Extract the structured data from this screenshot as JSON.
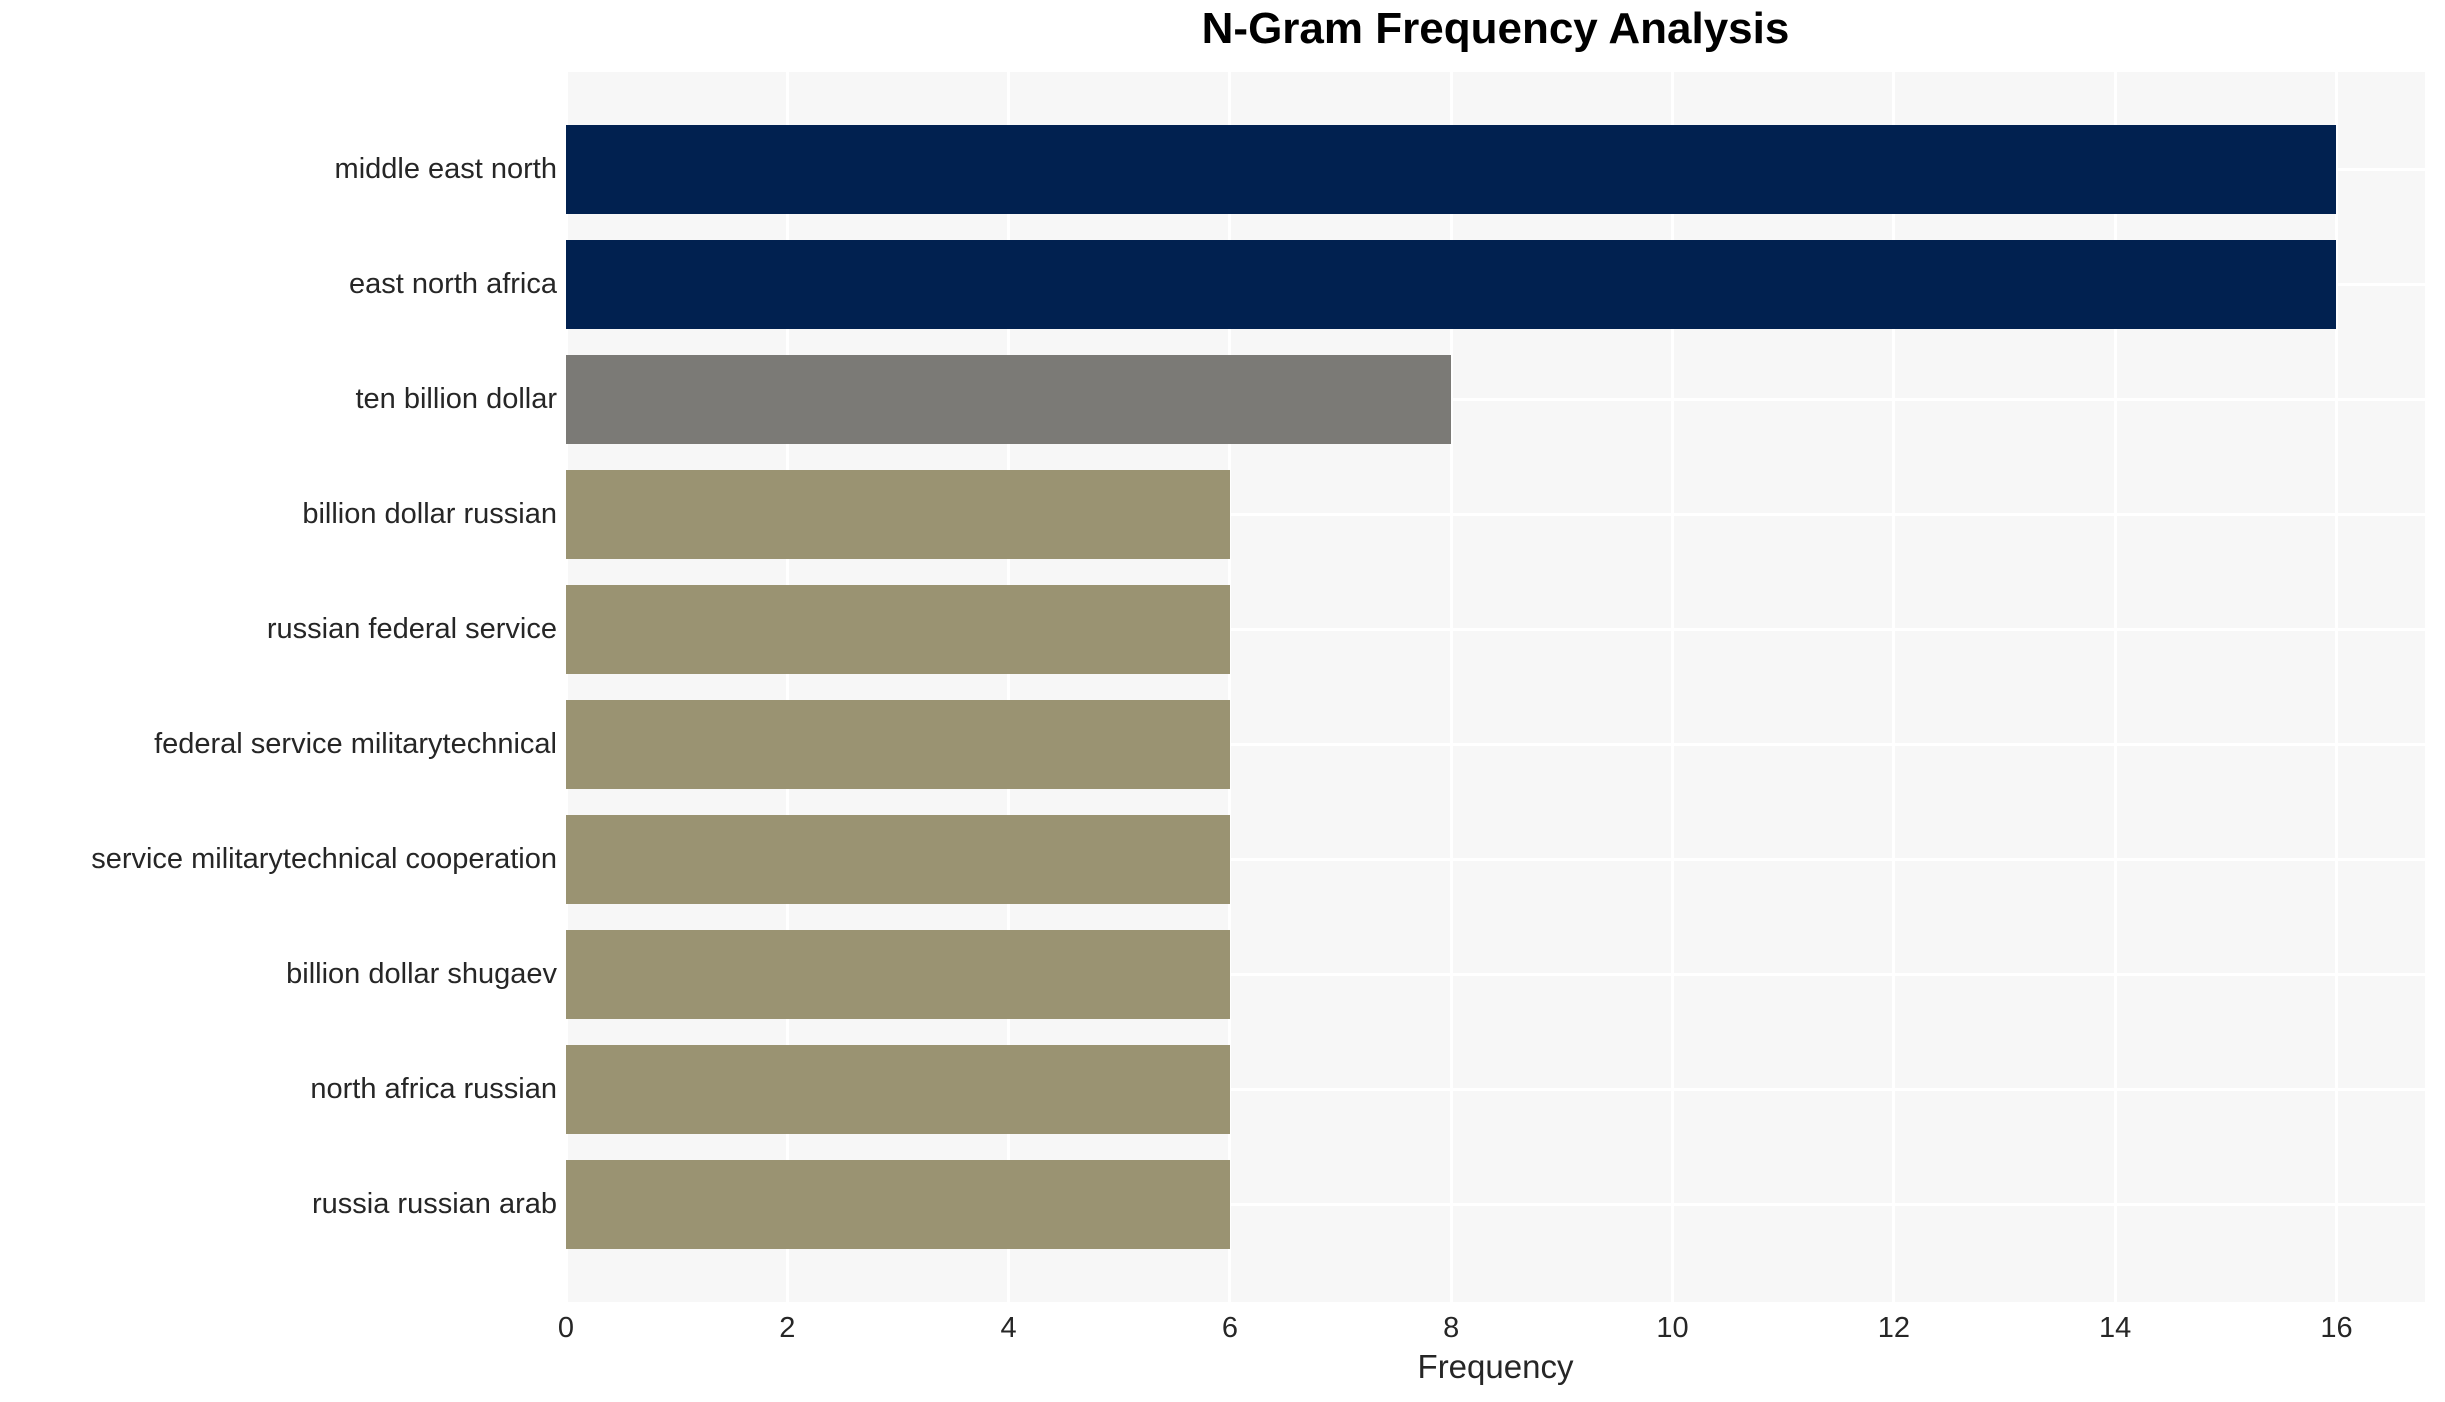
{
  "chart_data": {
    "type": "bar",
    "orientation": "horizontal",
    "title": "N-Gram Frequency Analysis",
    "xlabel": "Frequency",
    "ylabel": "",
    "categories": [
      "middle east north",
      "east north africa",
      "ten billion dollar",
      "billion dollar russian",
      "russian federal service",
      "federal service militarytechnical",
      "service militarytechnical cooperation",
      "billion dollar shugaev",
      "north africa russian",
      "russia russian arab"
    ],
    "values": [
      16,
      16,
      8,
      6,
      6,
      6,
      6,
      6,
      6,
      6
    ],
    "bar_colors": [
      "#012150",
      "#012150",
      "#7b7a76",
      "#9a9372",
      "#9a9372",
      "#9a9372",
      "#9a9372",
      "#9a9372",
      "#9a9372",
      "#9a9372"
    ],
    "xticks": [
      0,
      2,
      4,
      6,
      8,
      10,
      12,
      14,
      16
    ],
    "xlim": [
      0,
      16.8
    ],
    "grid": true,
    "legend": "none",
    "plot_bg_color": "#f7f7f7",
    "grid_color": "#ffffff",
    "outer_bg_color": "#ffffff",
    "text_color": "#262626",
    "title_color": "#000000"
  }
}
